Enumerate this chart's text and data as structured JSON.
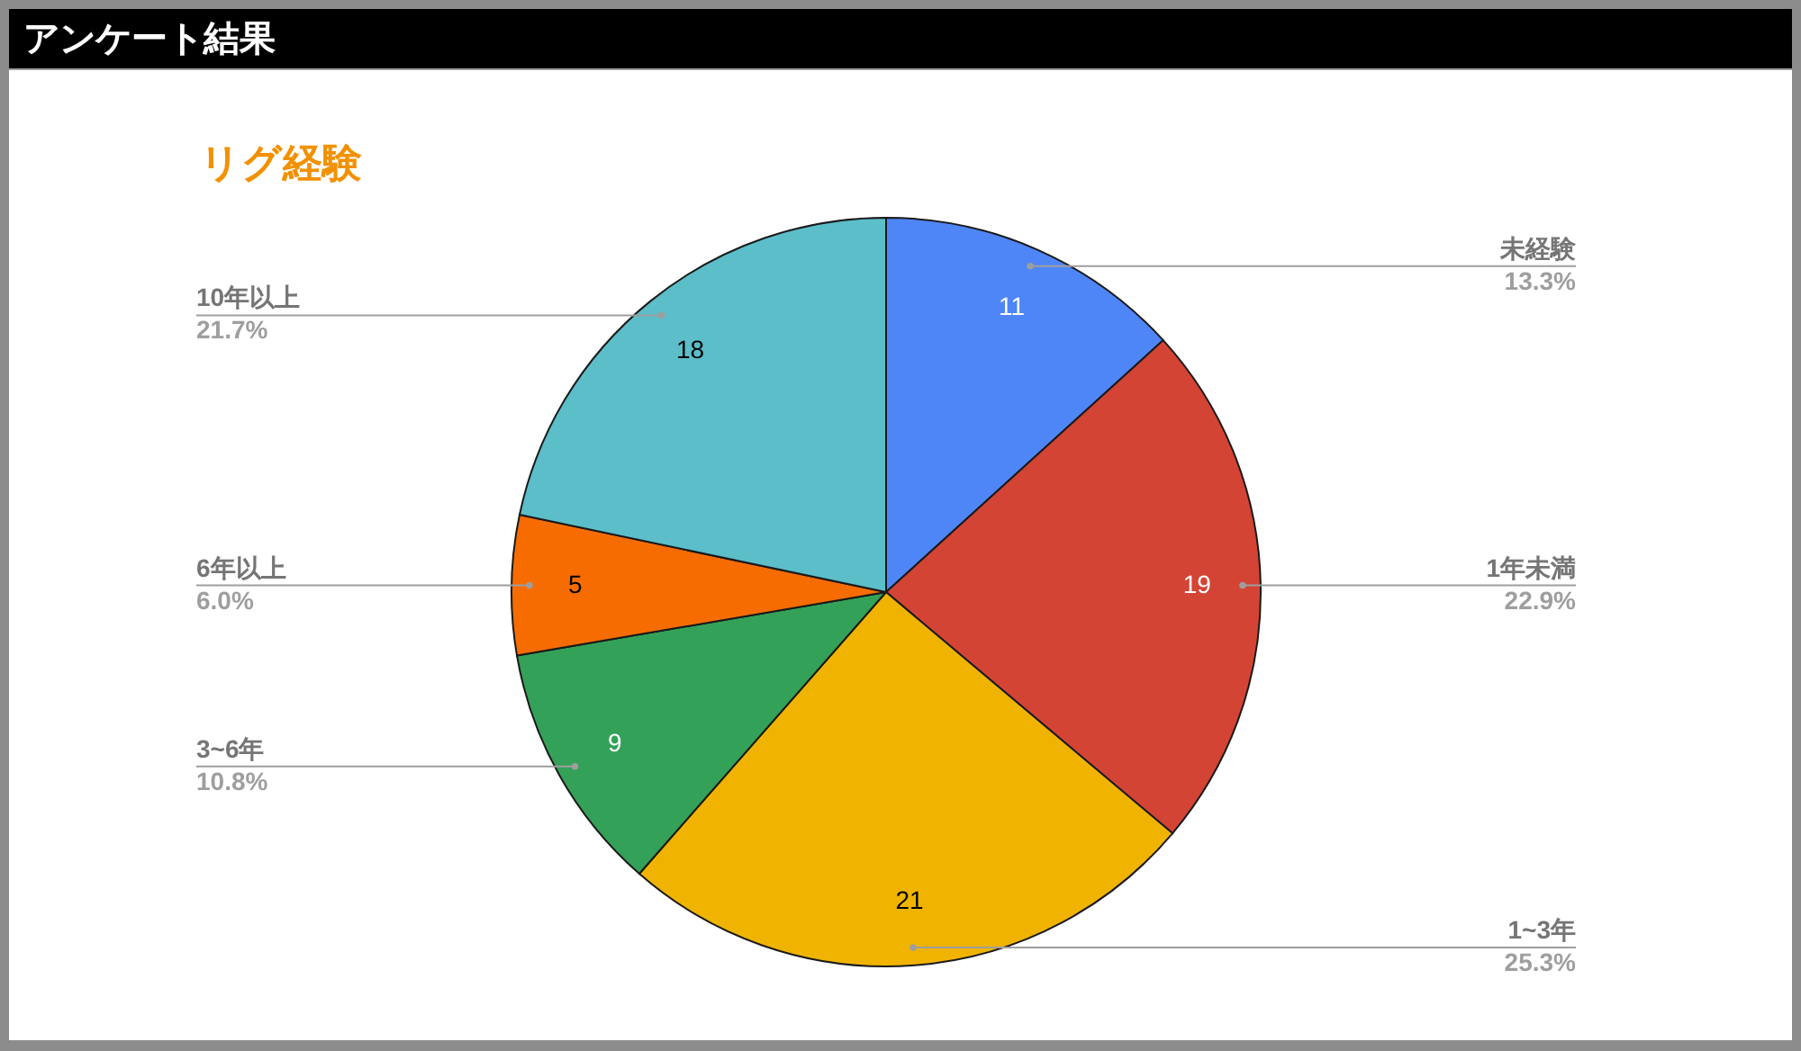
{
  "chart_data": {
    "type": "pie",
    "title": "アンケート結果",
    "subtitle": "リグ経験",
    "categories": [
      "未経験",
      "1年未満",
      "1~3年",
      "3~6年",
      "6年以上",
      "10年以上"
    ],
    "values": [
      11,
      19,
      21,
      9,
      5,
      18
    ],
    "colors": [
      "#4f86f7",
      "#d44434",
      "#f0b400",
      "#34a159",
      "#f66c00",
      "#5bbec9"
    ],
    "data_labels": true,
    "annotations": [
      "13.3%",
      "22.9%",
      "25.3%",
      "10.8%",
      "6.0%",
      "21.7%"
    ],
    "legend": false
  }
}
